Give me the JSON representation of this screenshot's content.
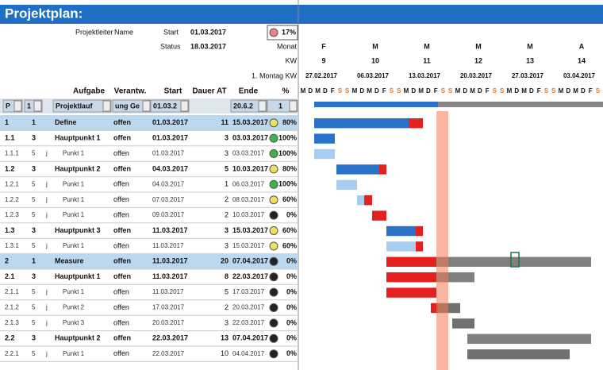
{
  "header": {
    "title": "Projektplan:",
    "leader_label": "Projektleiter",
    "leader": "Name",
    "start_label": "Start",
    "start": "01.03.2017",
    "status_label": "Status",
    "status": "18.03.2017",
    "progress": "17%"
  },
  "timeline": {
    "month_label": "Monat",
    "kw_label": "KW",
    "monday_label": "1. Montag KW",
    "months": [
      "F",
      "M",
      "M",
      "M",
      "M",
      "A"
    ],
    "weeks": [
      "9",
      "10",
      "11",
      "12",
      "13",
      "14"
    ],
    "mondays": [
      "27.02.2017",
      "06.03.2017",
      "13.03.2017",
      "20.03.2017",
      "27.03.2017",
      "03.04.2017"
    ],
    "weekdays": [
      "M",
      "D",
      "M",
      "D",
      "F",
      "S",
      "S"
    ]
  },
  "columns": [
    "Aufgabe",
    "Verantw.",
    "Start",
    "Dauer AT",
    "Ende",
    "%"
  ],
  "filter": [
    "P",
    "1",
    "Projektlauf",
    "ung Ge",
    "01.03.2",
    "20.6.2",
    "1"
  ],
  "rows": [
    {
      "nr": "1",
      "level": 1,
      "task": "Define",
      "owner": "offen",
      "start": "01.03.2017",
      "days": 11,
      "end": "15.03.2017",
      "status": "#f0e060",
      "pct": "80%"
    },
    {
      "nr": "1.1",
      "level": 3,
      "task": "Hauptpunkt 1",
      "owner": "offen",
      "start": "01.03.2017",
      "days": 3,
      "end": "03.03.2017",
      "status": "#3cb44b",
      "pct": "100%"
    },
    {
      "nr": "1.1.1",
      "level": 5,
      "mark": "j",
      "task": "Punkt 1",
      "owner": "offen",
      "start": "01.03.2017",
      "days": 3,
      "end": "03.03.2017",
      "status": "#3cb44b",
      "pct": "100%"
    },
    {
      "nr": "1.2",
      "level": 3,
      "task": "Hauptpunkt 2",
      "owner": "offen",
      "start": "04.03.2017",
      "days": 5,
      "end": "10.03.2017",
      "status": "#f0e060",
      "pct": "80%"
    },
    {
      "nr": "1.2.1",
      "level": 5,
      "mark": "j",
      "task": "Punkt 1",
      "owner": "offen",
      "start": "04.03.2017",
      "days": 1,
      "end": "06.03.2017",
      "status": "#3cb44b",
      "pct": "100%"
    },
    {
      "nr": "1.2.2",
      "level": 5,
      "mark": "j",
      "task": "Punkt 1",
      "owner": "offen",
      "start": "07.03.2017",
      "days": 2,
      "end": "08.03.2017",
      "status": "#f0e060",
      "pct": "60%"
    },
    {
      "nr": "1.2.3",
      "level": 5,
      "mark": "j",
      "task": "Punkt 1",
      "owner": "offen",
      "start": "09.03.2017",
      "days": 2,
      "end": "10.03.2017",
      "status": "#222222",
      "pct": "0%"
    },
    {
      "nr": "1.3",
      "level": 3,
      "task": "Hauptpunkt 3",
      "owner": "offen",
      "start": "11.03.2017",
      "days": 3,
      "end": "15.03.2017",
      "status": "#f0e060",
      "pct": "60%"
    },
    {
      "nr": "1.3.1",
      "level": 5,
      "mark": "j",
      "task": "Punkt 1",
      "owner": "offen",
      "start": "11.03.2017",
      "days": 3,
      "end": "15.03.2017",
      "status": "#f0e060",
      "pct": "60%"
    },
    {
      "nr": "2",
      "level": 1,
      "task": "Measure",
      "owner": "offen",
      "start": "11.03.2017",
      "days": 20,
      "end": "07.04.2017",
      "status": "#222222",
      "pct": "0%"
    },
    {
      "nr": "2.1",
      "level": 3,
      "task": "Hauptpunkt 1",
      "owner": "offen",
      "start": "11.03.2017",
      "days": 8,
      "end": "22.03.2017",
      "status": "#222222",
      "pct": "0%"
    },
    {
      "nr": "2.1.1",
      "level": 5,
      "mark": "j",
      "task": "Punkt 1",
      "owner": "offen",
      "start": "11.03.2017",
      "days": 5,
      "end": "17.03.2017",
      "status": "#222222",
      "pct": "0%"
    },
    {
      "nr": "2.1.2",
      "level": 5,
      "mark": "j",
      "task": "Punkt 2",
      "owner": "offen",
      "start": "17.03.2017",
      "days": 2,
      "end": "20.03.2017",
      "status": "#222222",
      "pct": "0%"
    },
    {
      "nr": "2.1.3",
      "level": 5,
      "mark": "j",
      "task": "Punkt 3",
      "owner": "offen",
      "start": "20.03.2017",
      "days": 3,
      "end": "22.03.2017",
      "status": "#222222",
      "pct": "0%"
    },
    {
      "nr": "2.2",
      "level": 3,
      "task": "Hauptpunkt 2",
      "owner": "offen",
      "start": "22.03.2017",
      "days": 13,
      "end": "07.04.2017",
      "status": "#222222",
      "pct": "0%"
    },
    {
      "nr": "2.2.1",
      "level": 5,
      "mark": "j",
      "task": "Punkt 1",
      "owner": "offen",
      "start": "22.03.2017",
      "days": 10,
      "end": "04.04.2017",
      "status": "#222222",
      "pct": "0%"
    }
  ]
}
